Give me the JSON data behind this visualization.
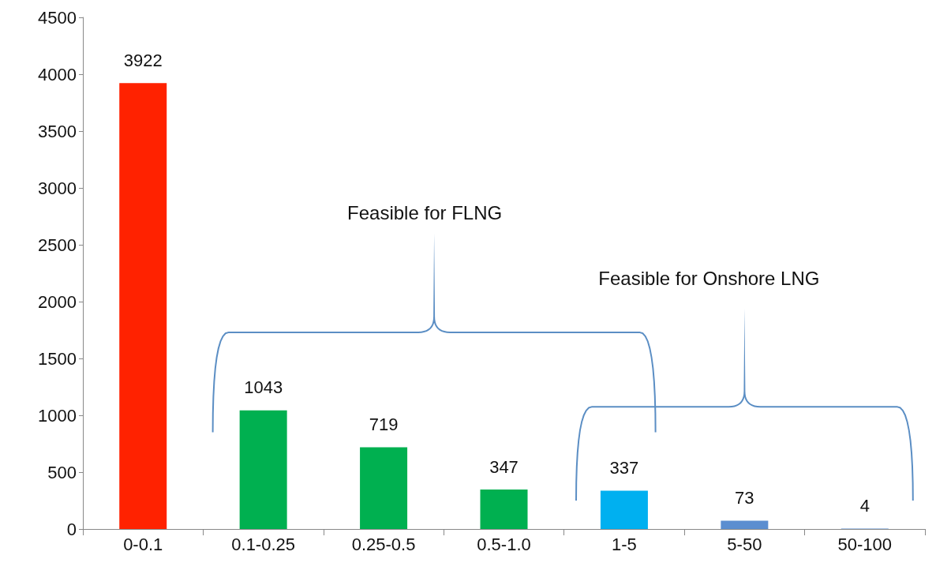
{
  "chart_data": {
    "type": "bar",
    "categories": [
      "0-0.1",
      "0.1-0.25",
      "0.25-0.5",
      "0.5-1.0",
      "1-5",
      "5-50",
      "50-100"
    ],
    "values": [
      3922,
      1043,
      719,
      347,
      337,
      73,
      4
    ],
    "colors": [
      "#ff2200",
      "#00b050",
      "#00b050",
      "#00b050",
      "#00b0f0",
      "#5b8ed0",
      "#5b8ed0"
    ],
    "ylim": [
      0,
      4500
    ],
    "yticks": [
      0,
      500,
      1000,
      1500,
      2000,
      2500,
      3000,
      3500,
      4000,
      4500
    ],
    "grid": false,
    "data_labels": true,
    "annotations": [
      "Feasible for FLNG",
      "Feasible for Onshore LNG"
    ]
  }
}
